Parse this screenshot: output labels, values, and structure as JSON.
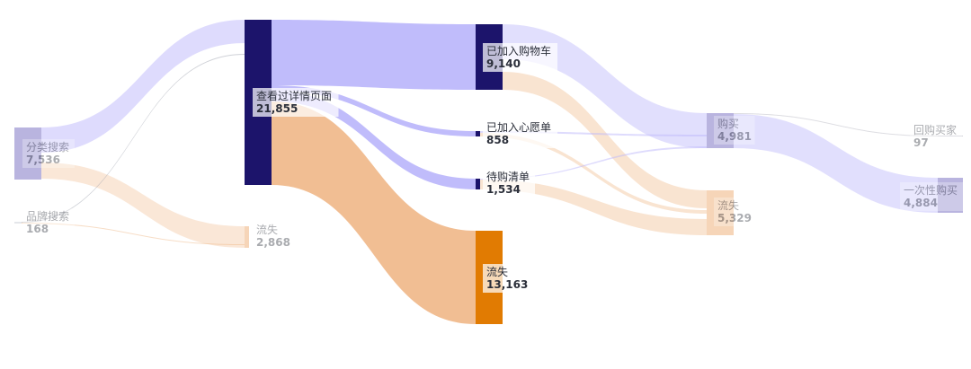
{
  "chart_data": {
    "type": "sankey",
    "colors": {
      "purple": "#bdb8fb",
      "orange": "#f0bb8d",
      "navy": "#1c146b",
      "dark_orange": "#e17b02",
      "faded_node": "#b9b4df",
      "faded_orange_node": "#f6d5b8"
    },
    "nodes": [
      {
        "id": "cat",
        "name": "分类搜索",
        "value": "7,536"
      },
      {
        "id": "brand",
        "name": "品牌搜索",
        "value": "168"
      },
      {
        "id": "detail",
        "name": "查看过详情页面",
        "value": "21,855"
      },
      {
        "id": "loss1",
        "name": "流失",
        "value": "2,868"
      },
      {
        "id": "cart",
        "name": "已加入购物车",
        "value": "9,140"
      },
      {
        "id": "wish",
        "name": "已加入心愿单",
        "value": "858"
      },
      {
        "id": "pending",
        "name": "待购清单",
        "value": "1,534"
      },
      {
        "id": "loss2",
        "name": "流失",
        "value": "13,163"
      },
      {
        "id": "buy",
        "name": "购买",
        "value": "4,981"
      },
      {
        "id": "loss3",
        "name": "流失",
        "value": "5,329"
      },
      {
        "id": "repeat",
        "name": "回购买家",
        "value": "97"
      },
      {
        "id": "once",
        "name": "一次性购买",
        "value": "4,884"
      }
    ]
  }
}
